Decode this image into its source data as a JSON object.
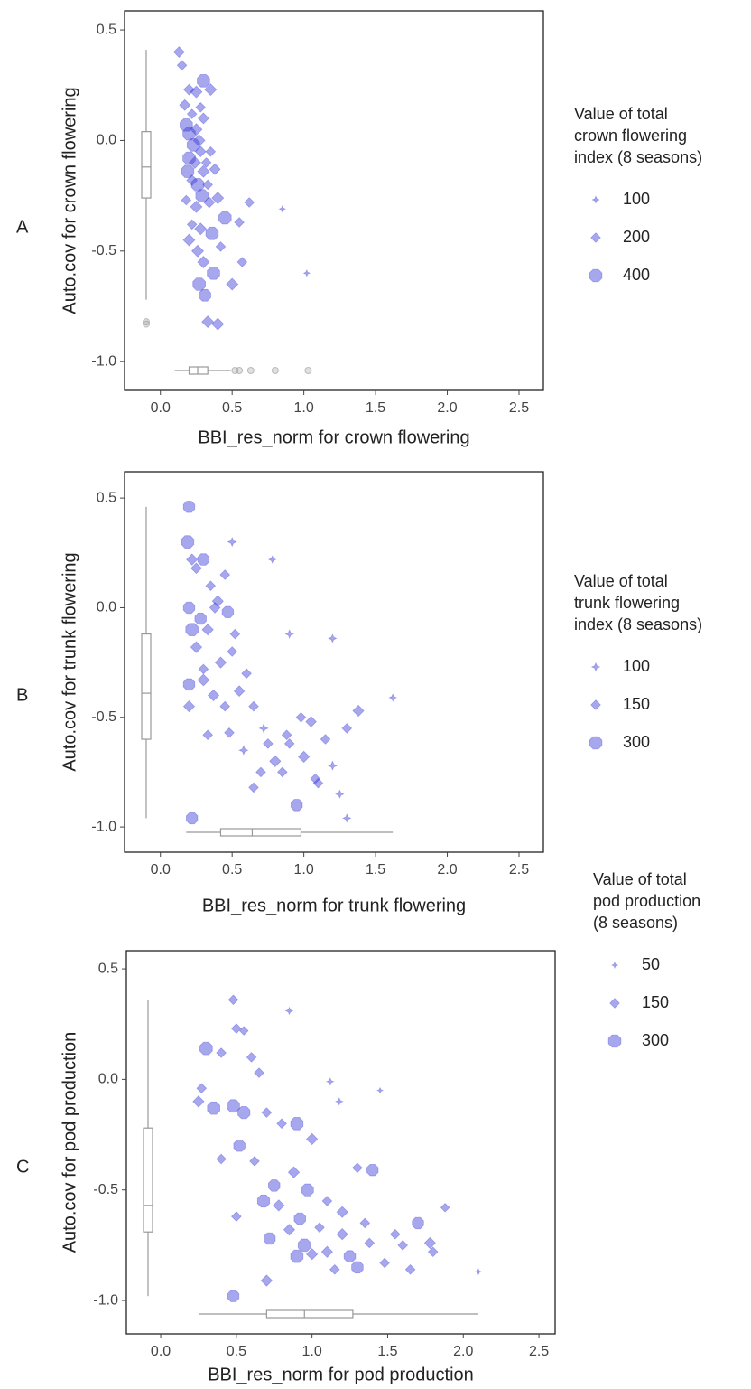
{
  "chart_data": [
    {
      "type": "scatter",
      "panel_label": "A",
      "xlabel": "BBI_res_norm for crown flowering",
      "ylabel": "Auto.cov for crown flowering",
      "xlim": [
        -0.25,
        2.67
      ],
      "ylim": [
        -1.13,
        0.586
      ],
      "xticks": [
        {
          "value": 0,
          "label": "0.0"
        },
        0.5,
        {
          "value": 1,
          "label": "1.0"
        },
        1.5,
        {
          "value": 2,
          "label": "2.0"
        },
        2.5
      ],
      "yticks": [
        0.5,
        {
          "value": 0,
          "label": "0.0"
        },
        -0.5,
        {
          "value": -1,
          "label": "-1.0"
        }
      ],
      "series": [
        {
          "color": "#3b3bd6",
          "x": [
            0.13,
            0.15,
            0.2,
            0.25,
            0.3,
            0.35,
            0.17,
            0.22,
            0.28,
            0.18,
            0.2,
            0.25,
            0.3,
            0.23,
            0.27,
            0.2,
            0.24,
            0.28,
            0.32,
            0.35,
            0.19,
            0.22,
            0.26,
            0.3,
            0.33,
            0.38,
            0.18,
            0.25,
            0.29,
            0.34,
            0.4,
            0.22,
            0.28,
            0.36,
            0.45,
            0.55,
            0.62,
            0.26,
            0.3,
            0.42,
            0.5,
            0.57,
            0.37,
            0.33,
            0.4,
            0.85,
            1.02,
            0.2,
            0.27,
            0.31
          ],
          "y": [
            0.4,
            0.34,
            0.23,
            0.22,
            0.27,
            0.23,
            0.16,
            0.12,
            0.15,
            0.07,
            0.03,
            0.05,
            0.1,
            -0.02,
            0,
            -0.08,
            -0.1,
            -0.05,
            -0.1,
            -0.05,
            -0.14,
            -0.18,
            -0.2,
            -0.14,
            -0.2,
            -0.13,
            -0.27,
            -0.3,
            -0.25,
            -0.28,
            -0.26,
            -0.38,
            -0.4,
            -0.42,
            -0.35,
            -0.37,
            -0.28,
            -0.5,
            -0.55,
            -0.48,
            -0.65,
            -0.55,
            -0.6,
            -0.82,
            -0.83,
            -0.31,
            -0.6,
            -0.45,
            -0.65,
            -0.7
          ],
          "sizes": [
            250,
            200,
            250,
            300,
            400,
            300,
            250,
            200,
            200,
            400,
            400,
            300,
            250,
            400,
            300,
            400,
            300,
            250,
            200,
            200,
            400,
            250,
            400,
            300,
            200,
            250,
            200,
            300,
            400,
            250,
            300,
            200,
            300,
            400,
            400,
            200,
            200,
            300,
            300,
            200,
            300,
            200,
            400,
            300,
            300,
            80,
            80,
            300,
            400,
            350
          ]
        }
      ],
      "size_legend": {
        "title": [
          "Value of total",
          "crown flowering",
          "index (8 seasons)"
        ],
        "values": [
          100,
          200,
          400
        ]
      },
      "y_boxplot": {
        "min": -0.72,
        "q1": -0.26,
        "median": -0.12,
        "q3": 0.04,
        "max": 0.41,
        "outliers": [
          -0.82,
          -0.83
        ]
      },
      "x_boxplot": {
        "min": 0.1,
        "q1": 0.2,
        "median": 0.26,
        "q3": 0.33,
        "max": 0.49,
        "outliers": [
          0.52,
          0.55,
          0.63,
          0.8,
          1.03
        ]
      }
    },
    {
      "type": "scatter",
      "panel_label": "B",
      "xlabel": "BBI_res_norm for trunk flowering",
      "ylabel": "Auto.cov for trunk flowering",
      "xlim": [
        -0.25,
        2.67
      ],
      "ylim": [
        -1.115,
        0.62
      ],
      "xticks": [
        {
          "value": 0,
          "label": "0.0"
        },
        0.5,
        {
          "value": 1,
          "label": "1.0"
        },
        1.5,
        {
          "value": 2,
          "label": "2.0"
        },
        2.5
      ],
      "yticks": [
        0.5,
        {
          "value": 0,
          "label": "0.0"
        },
        -0.5,
        {
          "value": -1,
          "label": "-1.0"
        }
      ],
      "series": [
        {
          "color": "#3b3bd6",
          "x": [
            0.2,
            0.19,
            0.22,
            0.25,
            0.3,
            0.35,
            0.5,
            0.45,
            0.4,
            0.2,
            0.22,
            0.28,
            0.33,
            0.38,
            0.47,
            0.52,
            0.25,
            0.3,
            0.42,
            0.5,
            0.6,
            0.2,
            0.3,
            0.37,
            0.45,
            0.55,
            0.65,
            0.2,
            0.33,
            0.48,
            0.58,
            0.75,
            0.88,
            0.98,
            1.05,
            1.15,
            0.7,
            0.8,
            0.9,
            1.0,
            1.1,
            1.2,
            1.3,
            1.38,
            0.65,
            0.72,
            0.85,
            0.95,
            1.08,
            1.25,
            0.22,
            0.9,
            1.3,
            1.62,
            0.78,
            1.2
          ],
          "y": [
            0.46,
            0.3,
            0.22,
            0.18,
            0.22,
            0.1,
            0.3,
            0.15,
            0.03,
            0,
            -0.1,
            -0.05,
            -0.1,
            0,
            -0.02,
            -0.12,
            -0.18,
            -0.28,
            -0.25,
            -0.2,
            -0.3,
            -0.35,
            -0.33,
            -0.4,
            -0.45,
            -0.38,
            -0.45,
            -0.45,
            -0.58,
            -0.57,
            -0.65,
            -0.62,
            -0.58,
            -0.5,
            -0.52,
            -0.6,
            -0.75,
            -0.7,
            -0.62,
            -0.68,
            -0.8,
            -0.72,
            -0.55,
            -0.47,
            -0.82,
            -0.55,
            -0.75,
            -0.9,
            -0.78,
            -0.85,
            -0.96,
            -0.12,
            -0.96,
            -0.41,
            0.22,
            -0.14
          ],
          "sizes": [
            250,
            300,
            200,
            180,
            250,
            150,
            120,
            150,
            200,
            250,
            300,
            250,
            200,
            180,
            250,
            150,
            200,
            150,
            200,
            150,
            150,
            250,
            220,
            200,
            150,
            180,
            150,
            200,
            150,
            150,
            120,
            150,
            150,
            150,
            180,
            150,
            150,
            200,
            150,
            200,
            150,
            120,
            150,
            200,
            150,
            120,
            150,
            250,
            150,
            100,
            250,
            100,
            100,
            80,
            80,
            100
          ]
        }
      ],
      "size_legend": {
        "title": [
          "Value of total",
          "trunk flowering",
          "index (8 seasons)"
        ],
        "values": [
          100,
          150,
          300
        ]
      },
      "y_boxplot": {
        "min": -0.96,
        "q1": -0.6,
        "median": -0.39,
        "q3": -0.12,
        "max": 0.46,
        "outliers": []
      },
      "x_boxplot": {
        "min": 0.18,
        "q1": 0.42,
        "median": 0.64,
        "q3": 0.98,
        "max": 1.62,
        "outliers": []
      }
    },
    {
      "type": "scatter",
      "panel_label": "C",
      "xlabel": "BBI_res_norm for pod production",
      "ylabel": "Auto.cov for pod production",
      "xlim": [
        -0.227,
        2.607
      ],
      "ylim": [
        -1.151,
        0.582
      ],
      "xticks": [
        {
          "value": 0,
          "label": "0.0"
        },
        0.5,
        {
          "value": 1,
          "label": "1.0"
        },
        1.5,
        {
          "value": 2,
          "label": "2.0"
        },
        2.5
      ],
      "yticks": [
        0.5,
        {
          "value": 0,
          "label": "0.0"
        },
        -0.5,
        {
          "value": -1,
          "label": "-1.0"
        }
      ],
      "series": [
        {
          "color": "#3b3bd6",
          "x": [
            0.48,
            0.5,
            0.55,
            0.85,
            0.3,
            0.4,
            0.6,
            0.27,
            0.65,
            1.12,
            1.45,
            0.25,
            0.35,
            0.48,
            0.55,
            0.7,
            0.8,
            0.9,
            1.0,
            1.18,
            0.4,
            0.52,
            0.62,
            0.75,
            0.88,
            0.97,
            1.1,
            1.3,
            0.5,
            0.68,
            0.78,
            0.92,
            1.05,
            1.2,
            1.35,
            1.4,
            0.72,
            0.85,
            0.95,
            1.1,
            1.25,
            1.38,
            1.55,
            1.7,
            1.8,
            1.88,
            0.9,
            1.0,
            1.15,
            1.3,
            1.48,
            1.65,
            1.78,
            2.1,
            0.7,
            0.48,
            1.6,
            1.2
          ],
          "y": [
            0.36,
            0.23,
            0.22,
            0.31,
            0.14,
            0.12,
            0.1,
            -0.04,
            0.03,
            -0.01,
            -0.05,
            -0.1,
            -0.13,
            -0.12,
            -0.15,
            -0.15,
            -0.2,
            -0.2,
            -0.27,
            -0.1,
            -0.36,
            -0.3,
            -0.37,
            -0.48,
            -0.42,
            -0.5,
            -0.55,
            -0.4,
            -0.62,
            -0.55,
            -0.57,
            -0.63,
            -0.67,
            -0.6,
            -0.65,
            -0.41,
            -0.72,
            -0.68,
            -0.75,
            -0.78,
            -0.8,
            -0.74,
            -0.7,
            -0.65,
            -0.78,
            -0.58,
            -0.8,
            -0.79,
            -0.86,
            -0.85,
            -0.83,
            -0.86,
            -0.74,
            -0.87,
            -0.91,
            -0.98,
            -0.75,
            -0.7
          ],
          "sizes": [
            150,
            150,
            120,
            80,
            300,
            150,
            150,
            150,
            150,
            80,
            50,
            200,
            300,
            300,
            280,
            150,
            150,
            300,
            200,
            80,
            150,
            250,
            150,
            250,
            200,
            280,
            150,
            150,
            150,
            280,
            200,
            250,
            150,
            200,
            150,
            250,
            250,
            200,
            300,
            200,
            250,
            150,
            150,
            250,
            150,
            120,
            300,
            200,
            150,
            250,
            150,
            150,
            200,
            50,
            200,
            250,
            150,
            200
          ]
        }
      ],
      "size_legend": {
        "title": [
          "Value of total",
          "pod production",
          "(8 seasons)"
        ],
        "values": [
          50,
          150,
          300
        ]
      },
      "y_boxplot": {
        "min": -0.98,
        "q1": -0.69,
        "median": -0.57,
        "q3": -0.22,
        "max": 0.36,
        "outliers": []
      },
      "x_boxplot": {
        "min": 0.25,
        "q1": 0.7,
        "median": 0.95,
        "q3": 1.27,
        "max": 2.1,
        "outliers": []
      }
    }
  ]
}
